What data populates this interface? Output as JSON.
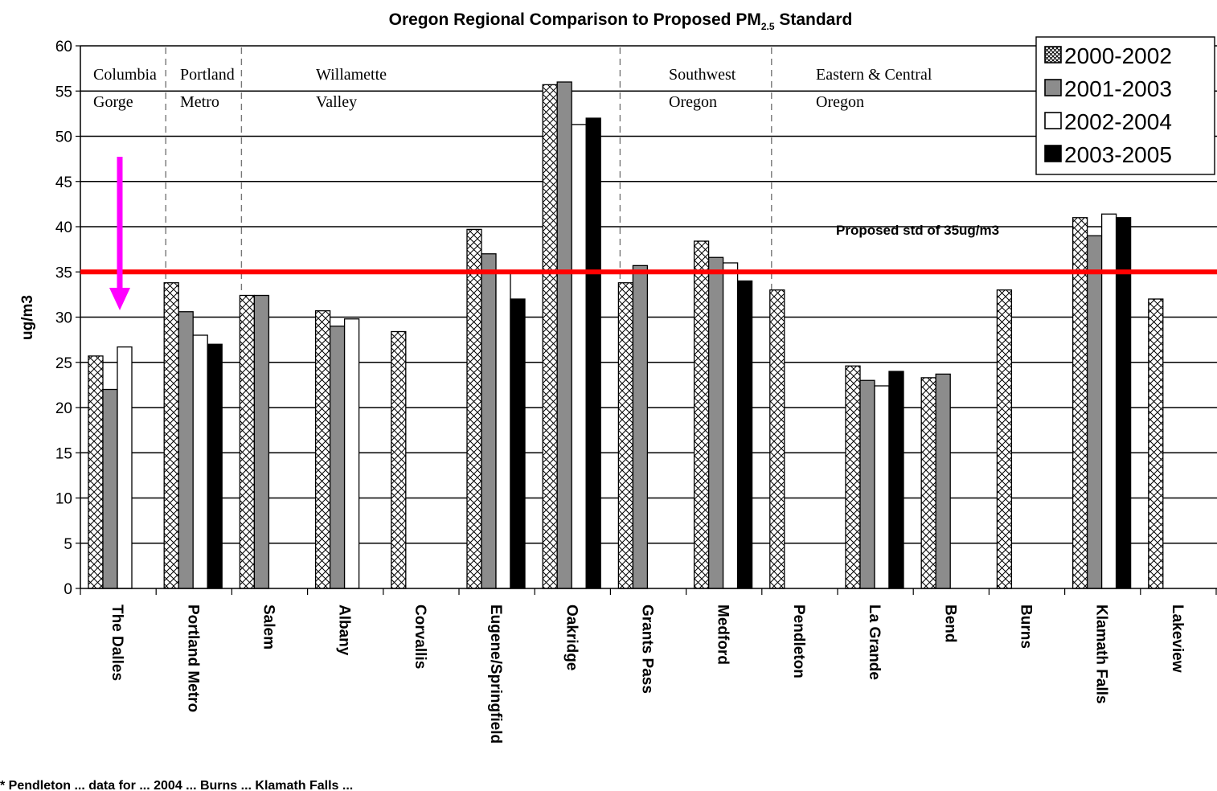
{
  "chart_data": {
    "type": "bar",
    "title": "Oregon Regional Comparison to Proposed PM",
    "title_sub": "2.5",
    "title_suffix": " Standard",
    "ylabel": "ug/m3",
    "xlabel": "",
    "ylim": [
      0,
      60
    ],
    "yticks": [
      0,
      5,
      10,
      15,
      20,
      25,
      30,
      35,
      40,
      45,
      50,
      55,
      60
    ],
    "grid": true,
    "legend_position": "top-right",
    "categories": [
      "The Dalles",
      "Portland Metro",
      "Salem",
      "Albany",
      "Corvallis",
      "Eugene/Springfield",
      "Oakridge",
      "Grants Pass",
      "Medford",
      "Pendleton",
      "La Grande",
      "Bend",
      "Burns",
      "Klamath Falls",
      "Lakeview"
    ],
    "series": [
      {
        "name": "2000-2002",
        "style": "crosshatch",
        "values": [
          25.7,
          33.8,
          32.4,
          30.7,
          28.4,
          39.7,
          55.7,
          33.8,
          38.4,
          33.0,
          24.6,
          23.3,
          33.0,
          41.0,
          32.0
        ]
      },
      {
        "name": "2001-2003",
        "style": "gray",
        "values": [
          22.0,
          30.6,
          32.4,
          29.0,
          null,
          37.0,
          56.0,
          35.7,
          36.6,
          null,
          23.0,
          23.7,
          null,
          39.0,
          null
        ]
      },
      {
        "name": "2002-2004",
        "style": "white",
        "values": [
          26.7,
          28.0,
          null,
          29.8,
          null,
          35.0,
          51.3,
          null,
          36.0,
          null,
          22.4,
          null,
          null,
          41.4,
          null
        ]
      },
      {
        "name": "2003-2005",
        "style": "black",
        "values": [
          null,
          27.0,
          null,
          null,
          null,
          32.0,
          52.0,
          null,
          34.0,
          null,
          24.0,
          null,
          null,
          41.0,
          null
        ]
      }
    ],
    "reference_line": {
      "value": 35,
      "color": "#ff0000",
      "label": "Proposed std of 35ug/m3"
    },
    "regions": [
      {
        "lines": [
          "Columbia",
          "Gorge"
        ]
      },
      {
        "lines": [
          "Portland",
          "Metro"
        ]
      },
      {
        "lines": [
          "Willamette",
          "Valley"
        ]
      },
      {
        "lines": [
          "Southwest",
          "Oregon"
        ]
      },
      {
        "lines": [
          "Eastern & Central",
          "Oregon"
        ]
      }
    ],
    "highlight_arrow": {
      "category": "The Dalles",
      "color": "#ff00ff"
    },
    "footnote": "* Pendleton ... data for ... 2004 ... Burns ... Klamath Falls ..."
  }
}
